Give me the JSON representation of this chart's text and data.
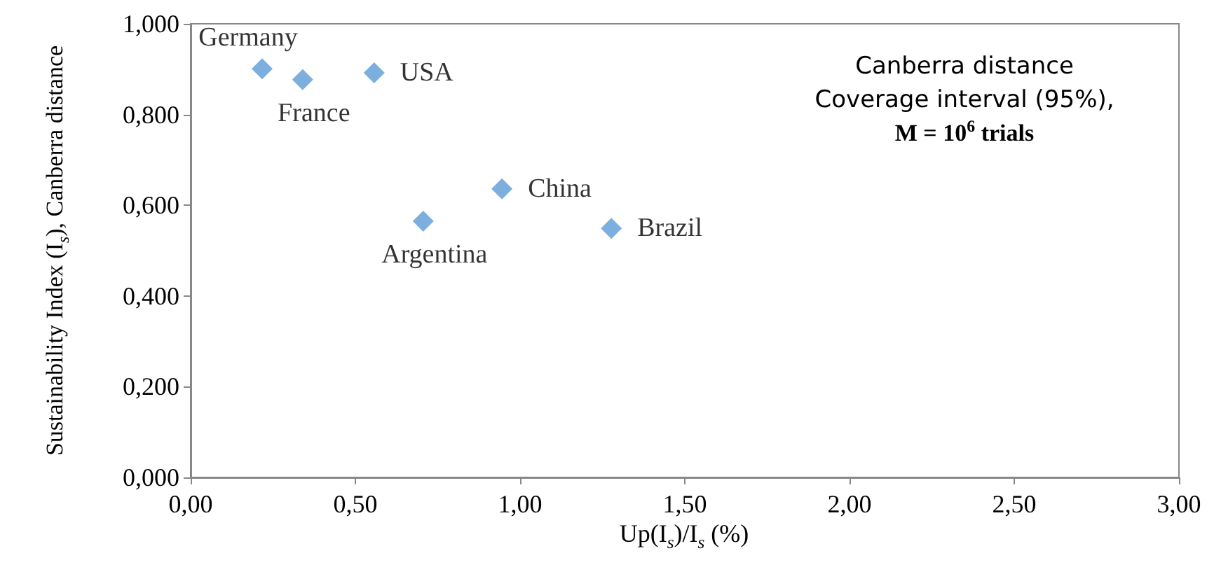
{
  "chart_data": {
    "type": "scatter",
    "xlabel": "Up(I$_{s}$)/I$_{s}$ (%)",
    "ylabel": "Sustainability Index (I$_{s}$), Canberra distance",
    "x": [
      0.217,
      0.34,
      0.557,
      0.706,
      0.945,
      1.277
    ],
    "series": [
      {
        "color": "#5b9bd5",
        "values": [
          0.901,
          0.877,
          0.892,
          0.565,
          0.636,
          0.549
        ]
      }
    ],
    "marker": "diamond",
    "grid": false,
    "xlim": [
      0,
      3
    ],
    "ylim": [
      0,
      1
    ],
    "xticks": [
      {
        "value": 0,
        "label": "0,00"
      },
      {
        "value": 0.5,
        "label": "0,50"
      },
      {
        "value": 1,
        "label": "1,00"
      },
      {
        "value": 1.5,
        "label": "1,50"
      },
      {
        "value": 2,
        "label": "2,00"
      },
      {
        "value": 2.5,
        "label": "2,50"
      },
      {
        "value": 3,
        "label": "3,00"
      }
    ],
    "yticks": [
      {
        "value": 0,
        "label": "0,000"
      },
      {
        "value": 0.2,
        "label": "0,200"
      },
      {
        "value": 0.4,
        "label": "0,400"
      },
      {
        "value": 0.6,
        "label": "0,600"
      },
      {
        "value": 0.8,
        "label": "0,800"
      },
      {
        "value": 1,
        "label": "1,000"
      }
    ],
    "annotations": [
      {
        "text": "Germany",
        "x": 0.217,
        "y": 0.901
      },
      {
        "text": "France",
        "x": 0.34,
        "y": 0.877
      },
      {
        "text": "USA",
        "x": 0.557,
        "y": 0.892
      },
      {
        "text": "Argentina",
        "x": 0.706,
        "y": 0.565
      },
      {
        "text": "China",
        "x": 0.945,
        "y": 0.636
      },
      {
        "text": "Brazil",
        "x": 1.277,
        "y": 0.549
      },
      "Canberra distance",
      "Coverage interval (95%),",
      "M = 10$^{6}$ trials"
    ]
  }
}
